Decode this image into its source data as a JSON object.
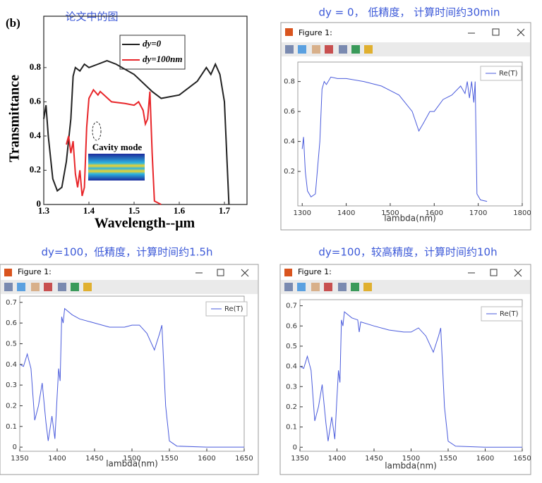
{
  "chart_data": [
    {
      "type": "line",
      "title": "论文中的图",
      "panel_label": "(b)",
      "xlabel": "Wavelength--μm",
      "ylabel": "Transmittance",
      "annotation": "Cavity mode",
      "xlim": [
        1.3,
        1.75
      ],
      "ylim": [
        0,
        1.1
      ],
      "xticks": [
        1.3,
        1.4,
        1.5,
        1.6,
        1.7
      ],
      "yticks": [
        0,
        0.2,
        0.4,
        0.6,
        0.8
      ],
      "series": [
        {
          "name": "dy=0",
          "color": "#222222",
          "x": [
            1.3,
            1.305,
            1.31,
            1.32,
            1.33,
            1.34,
            1.35,
            1.36,
            1.365,
            1.37,
            1.38,
            1.39,
            1.4,
            1.42,
            1.44,
            1.46,
            1.5,
            1.54,
            1.56,
            1.6,
            1.64,
            1.66,
            1.67,
            1.68,
            1.69,
            1.7,
            1.71
          ],
          "values": [
            0.5,
            0.58,
            0.4,
            0.15,
            0.08,
            0.1,
            0.25,
            0.5,
            0.75,
            0.8,
            0.78,
            0.82,
            0.8,
            0.82,
            0.84,
            0.82,
            0.76,
            0.66,
            0.62,
            0.64,
            0.72,
            0.8,
            0.76,
            0.82,
            0.76,
            0.6,
            0
          ]
        },
        {
          "name": "dy=100nm",
          "color": "#e8262a",
          "x": [
            1.35,
            1.355,
            1.36,
            1.365,
            1.37,
            1.375,
            1.38,
            1.385,
            1.39,
            1.395,
            1.4,
            1.41,
            1.42,
            1.425,
            1.45,
            1.48,
            1.5,
            1.51,
            1.52,
            1.525,
            1.53,
            1.535,
            1.54,
            1.545,
            1.56
          ],
          "values": [
            0.35,
            0.4,
            0.3,
            0.37,
            0.18,
            0.1,
            0.2,
            0.05,
            0.1,
            0.45,
            0.62,
            0.67,
            0.64,
            0.66,
            0.6,
            0.59,
            0.58,
            0.6,
            0.55,
            0.47,
            0.5,
            0.66,
            0.3,
            0.02,
            0
          ]
        }
      ]
    },
    {
      "type": "line",
      "title": "dy = 0， 低精度， 计算时间约30min",
      "window_title": "Figure 1:",
      "xlabel": "lambda(nm)",
      "xlim": [
        1290,
        1800
      ],
      "ylim": [
        -0.03,
        0.93
      ],
      "xticks": [
        1300,
        1400,
        1500,
        1600,
        1700,
        1800
      ],
      "yticks": [
        0.2,
        0.4,
        0.6,
        0.8
      ],
      "series": [
        {
          "name": "Re(T)",
          "color": "#4a5bdc",
          "x": [
            1300,
            1303,
            1307,
            1312,
            1320,
            1330,
            1340,
            1345,
            1350,
            1355,
            1365,
            1380,
            1400,
            1440,
            1480,
            1520,
            1550,
            1565,
            1575,
            1590,
            1600,
            1620,
            1640,
            1650,
            1660,
            1670,
            1675,
            1680,
            1685,
            1690,
            1693,
            1697,
            1705,
            1720
          ],
          "values": [
            0.35,
            0.43,
            0.2,
            0.07,
            0.03,
            0.05,
            0.4,
            0.75,
            0.8,
            0.78,
            0.83,
            0.82,
            0.82,
            0.8,
            0.77,
            0.71,
            0.6,
            0.47,
            0.52,
            0.6,
            0.6,
            0.68,
            0.71,
            0.74,
            0.77,
            0.72,
            0.8,
            0.69,
            0.8,
            0.66,
            0.8,
            0.05,
            0.01,
            0
          ]
        }
      ]
    },
    {
      "type": "line",
      "title": "dy=100，低精度，计算时间约1.5h",
      "window_title": "Figure 1:",
      "xlabel": "lambda(nm)",
      "xlim": [
        1350,
        1650
      ],
      "ylim": [
        -0.02,
        0.73
      ],
      "xticks": [
        1350,
        1400,
        1450,
        1500,
        1550,
        1600,
        1650
      ],
      "yticks": [
        0,
        0.1,
        0.2,
        0.3,
        0.4,
        0.5,
        0.6,
        0.7
      ],
      "series": [
        {
          "name": "Re(T)",
          "color": "#4a5bdc",
          "x": [
            1350,
            1355,
            1360,
            1365,
            1370,
            1375,
            1380,
            1385,
            1388,
            1393,
            1397,
            1400,
            1402,
            1404,
            1406,
            1408,
            1410,
            1420,
            1430,
            1450,
            1470,
            1490,
            1500,
            1510,
            1520,
            1530,
            1537,
            1540,
            1545,
            1550,
            1560,
            1600,
            1650
          ],
          "values": [
            0.4,
            0.39,
            0.45,
            0.38,
            0.13,
            0.2,
            0.31,
            0.12,
            0.03,
            0.15,
            0.04,
            0.25,
            0.38,
            0.32,
            0.63,
            0.6,
            0.67,
            0.64,
            0.62,
            0.6,
            0.58,
            0.58,
            0.59,
            0.59,
            0.55,
            0.47,
            0.55,
            0.59,
            0.2,
            0.03,
            0.005,
            0,
            0
          ]
        }
      ]
    },
    {
      "type": "line",
      "title": "dy=100，较高精度，计算时间约10h",
      "window_title": "Figure 1:",
      "xlabel": "lambda(nm)",
      "xlim": [
        1350,
        1650
      ],
      "ylim": [
        -0.02,
        0.73
      ],
      "xticks": [
        1350,
        1400,
        1450,
        1500,
        1550,
        1600,
        1650
      ],
      "yticks": [
        0,
        0.1,
        0.2,
        0.3,
        0.4,
        0.5,
        0.6,
        0.7
      ],
      "series": [
        {
          "name": "Re(T)",
          "color": "#4a5bdc",
          "x": [
            1350,
            1355,
            1360,
            1365,
            1370,
            1375,
            1380,
            1385,
            1388,
            1393,
            1397,
            1400,
            1402,
            1404,
            1406,
            1408,
            1410,
            1420,
            1428,
            1430,
            1432,
            1450,
            1470,
            1490,
            1500,
            1510,
            1520,
            1530,
            1537,
            1540,
            1545,
            1550,
            1560,
            1600,
            1650
          ],
          "values": [
            0.4,
            0.39,
            0.45,
            0.38,
            0.13,
            0.2,
            0.31,
            0.12,
            0.03,
            0.15,
            0.04,
            0.25,
            0.38,
            0.32,
            0.63,
            0.6,
            0.67,
            0.64,
            0.63,
            0.57,
            0.62,
            0.6,
            0.58,
            0.57,
            0.57,
            0.59,
            0.55,
            0.47,
            0.55,
            0.59,
            0.2,
            0.03,
            0.005,
            0,
            0
          ]
        }
      ]
    }
  ]
}
